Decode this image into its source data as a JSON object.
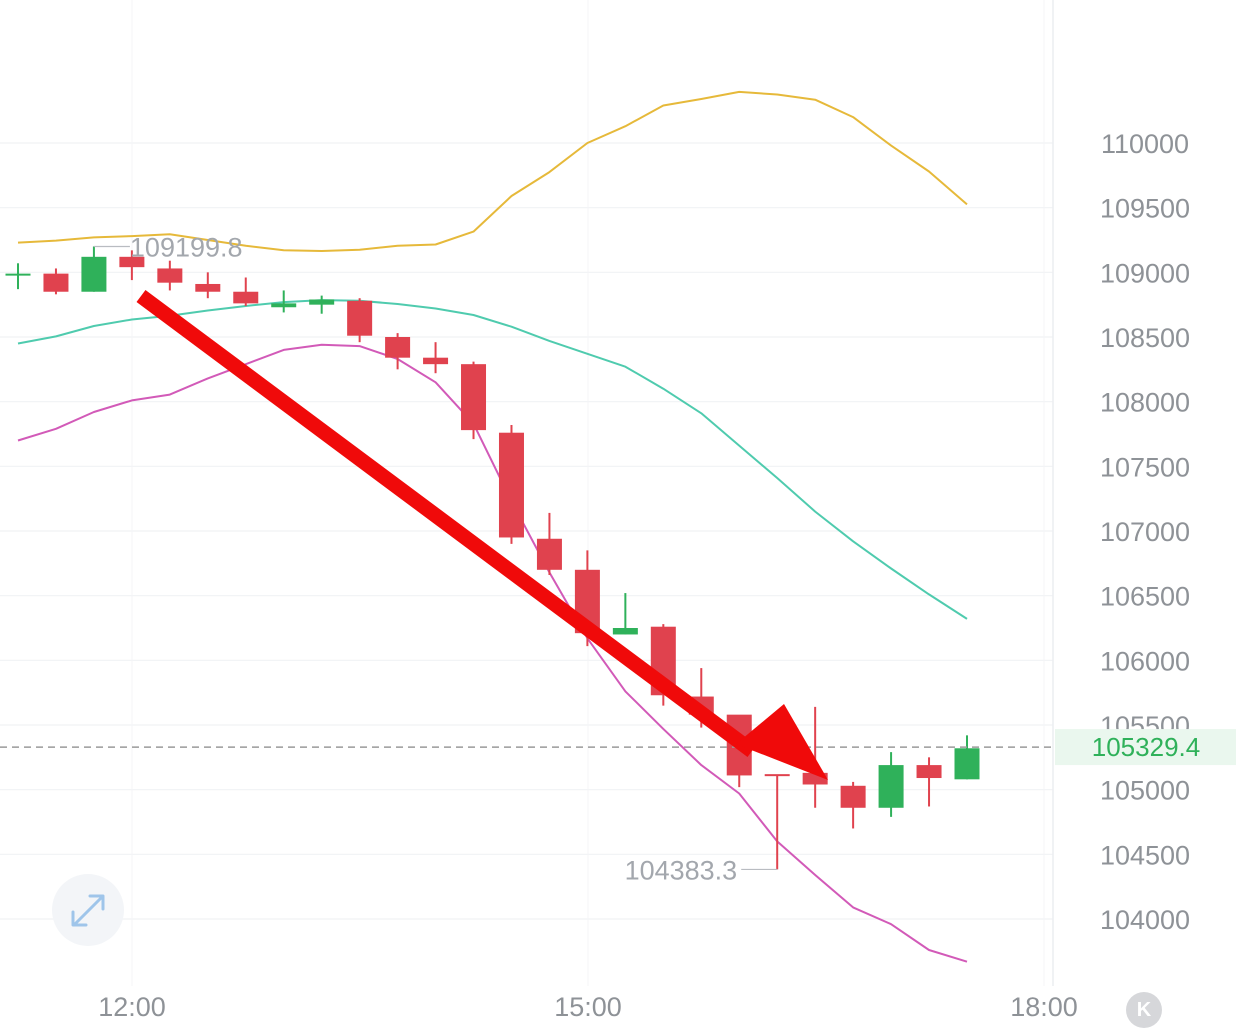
{
  "chart_data": {
    "type": "candlestick",
    "y_ticks": [
      104000,
      104500,
      105000,
      105500,
      106000,
      106500,
      107000,
      107500,
      108000,
      108500,
      109000,
      109500,
      110000
    ],
    "x_ticks": [
      "12:00",
      "15:00",
      "18:00"
    ],
    "current_price": 105329.4,
    "current_price_label": "105329.4",
    "max_label": "109199.8",
    "min_label": "104383.3",
    "candles": [
      {
        "o": 108990,
        "c": 108990,
        "h": 109070,
        "l": 108870
      },
      {
        "o": 108990,
        "c": 108850,
        "h": 109030,
        "l": 108830
      },
      {
        "o": 108850,
        "c": 109120,
        "h": 109200,
        "l": 108850
      },
      {
        "o": 109120,
        "c": 109040,
        "h": 109170,
        "l": 108940
      },
      {
        "o": 109030,
        "c": 108920,
        "h": 109090,
        "l": 108860
      },
      {
        "o": 108910,
        "c": 108850,
        "h": 109000,
        "l": 108800
      },
      {
        "o": 108850,
        "c": 108760,
        "h": 108960,
        "l": 108740
      },
      {
        "o": 108730,
        "c": 108760,
        "h": 108860,
        "l": 108690
      },
      {
        "o": 108750,
        "c": 108790,
        "h": 108820,
        "l": 108680
      },
      {
        "o": 108780,
        "c": 108510,
        "h": 108800,
        "l": 108460
      },
      {
        "o": 108500,
        "c": 108340,
        "h": 108530,
        "l": 108250
      },
      {
        "o": 108340,
        "c": 108290,
        "h": 108460,
        "l": 108220
      },
      {
        "o": 108290,
        "c": 107780,
        "h": 108310,
        "l": 107710
      },
      {
        "o": 107760,
        "c": 106950,
        "h": 107820,
        "l": 106900
      },
      {
        "o": 106940,
        "c": 106700,
        "h": 107140,
        "l": 106660
      },
      {
        "o": 106700,
        "c": 106210,
        "h": 106850,
        "l": 106110
      },
      {
        "o": 106200,
        "c": 106250,
        "h": 106520,
        "l": 106200
      },
      {
        "o": 106260,
        "c": 105730,
        "h": 106280,
        "l": 105650
      },
      {
        "o": 105720,
        "c": 105580,
        "h": 105940,
        "l": 105480
      },
      {
        "o": 105580,
        "c": 105110,
        "h": 105570,
        "l": 105020
      },
      {
        "o": 105120,
        "c": 105110,
        "h": 105110,
        "l": 104383.3
      },
      {
        "o": 105130,
        "c": 105040,
        "h": 105640,
        "l": 104860
      },
      {
        "o": 105030,
        "c": 104860,
        "h": 105060,
        "l": 104700
      },
      {
        "o": 104860,
        "c": 105190,
        "h": 105290,
        "l": 104790
      },
      {
        "o": 105190,
        "c": 105090,
        "h": 105250,
        "l": 104870
      },
      {
        "o": 105080,
        "c": 105320,
        "h": 105420,
        "l": 105080
      }
    ],
    "upper_band": [
      109230,
      109245,
      109270,
      109280,
      109295,
      109250,
      109205,
      109170,
      109165,
      109175,
      109205,
      109215,
      109315,
      109590,
      109775,
      110000,
      110130,
      110290,
      110340,
      110395,
      110375,
      110335,
      110200,
      109980,
      109780,
      109525
    ],
    "middle_band": [
      108450,
      108505,
      108585,
      108635,
      108665,
      108705,
      108740,
      108770,
      108785,
      108780,
      108755,
      108720,
      108670,
      108580,
      108470,
      108370,
      108270,
      108100,
      107910,
      107660,
      107410,
      107150,
      106920,
      106710,
      106510,
      106320
    ],
    "lower_band": [
      107700,
      107790,
      107920,
      108010,
      108055,
      108180,
      108290,
      108400,
      108440,
      108430,
      108330,
      108150,
      107830,
      107230,
      106680,
      106170,
      105760,
      105470,
      105190,
      104970,
      104600,
      104340,
      104090,
      103960,
      103760,
      103670
    ],
    "colors": {
      "up": "#2fb15a",
      "down": "#e0424e",
      "upper": "#e6b93a",
      "middle": "#4fcbae",
      "lower": "#d25ab8",
      "arrow": "#f00a0a"
    }
  }
}
